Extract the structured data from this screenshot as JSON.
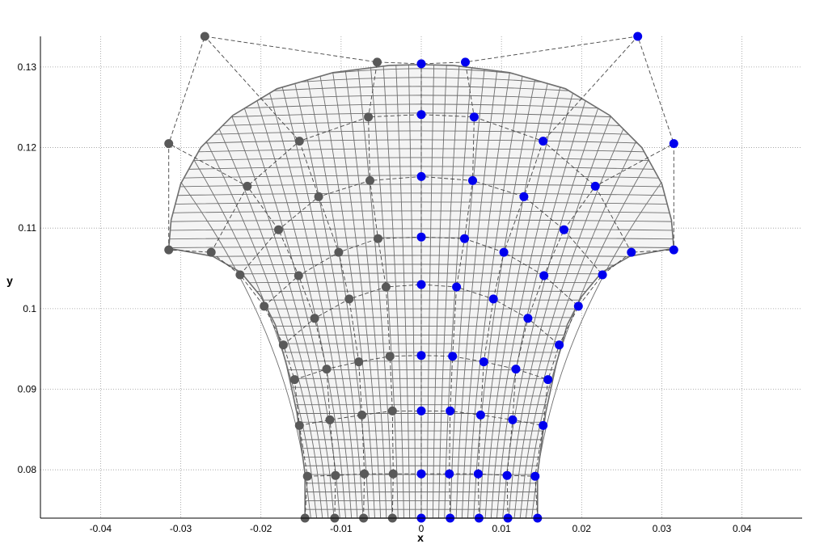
{
  "chart_data": {
    "type": "scatter",
    "xlabel": "x",
    "ylabel": "y",
    "xlim": [
      -0.0475,
      0.0475
    ],
    "ylim": [
      0.074,
      0.1338
    ],
    "grid": true,
    "xticks": [
      -0.04,
      -0.03,
      -0.02,
      -0.01,
      0,
      0.01,
      0.02,
      0.03,
      0.04
    ],
    "xtick_labels": [
      "-0.04",
      "-0.03",
      "-0.02",
      "-0.01",
      "0",
      "0.01",
      "0.02",
      "0.03",
      "0.04"
    ],
    "yticks": [
      0.08,
      0.09,
      0.1,
      0.11,
      0.12,
      0.13
    ],
    "ytick_labels": [
      "0.08",
      "0.09",
      "0.1",
      "0.11",
      "0.12",
      "0.13"
    ],
    "mesh": {
      "color": "#6e6e6e",
      "boundary": {
        "bottom_half_width": 0.0145,
        "bottom_y": 0.074,
        "neck_y": 0.0795,
        "left_edge": [
          [
            -0.0145,
            0.074
          ],
          [
            -0.0145,
            0.0795
          ],
          [
            -0.0155,
            0.087
          ],
          [
            -0.0168,
            0.093
          ],
          [
            -0.0182,
            0.098
          ],
          [
            -0.02,
            0.1015
          ],
          [
            -0.0225,
            0.1045
          ],
          [
            -0.026,
            0.1065
          ],
          [
            -0.0315,
            0.1075
          ]
        ],
        "top_arc": [
          [
            -0.0315,
            0.1075
          ],
          [
            -0.0312,
            0.111
          ],
          [
            -0.03,
            0.1155
          ],
          [
            -0.0275,
            0.12
          ],
          [
            -0.0235,
            0.124
          ],
          [
            -0.018,
            0.1273
          ],
          [
            -0.011,
            0.1293
          ],
          [
            -0.004,
            0.1302
          ],
          [
            0,
            0.1303
          ]
        ]
      }
    },
    "series": [
      {
        "name": "",
        "color": "#595959",
        "points": [
          [
            -0.0145,
            0.074
          ],
          [
            -0.0108,
            0.074
          ],
          [
            -0.0072,
            0.074
          ],
          [
            -0.0036,
            0.074
          ],
          [
            -0.0142,
            0.0792
          ],
          [
            -0.0107,
            0.0793
          ],
          [
            -0.0071,
            0.0795
          ],
          [
            -0.0035,
            0.0795
          ],
          [
            -0.0152,
            0.0855
          ],
          [
            -0.0114,
            0.0862
          ],
          [
            -0.0074,
            0.0868
          ],
          [
            -0.0036,
            0.0873
          ],
          [
            -0.0158,
            0.0912
          ],
          [
            -0.0118,
            0.0925
          ],
          [
            -0.0078,
            0.0934
          ],
          [
            -0.0039,
            0.0941
          ],
          [
            -0.0172,
            0.0955
          ],
          [
            -0.0133,
            0.0988
          ],
          [
            -0.009,
            0.1012
          ],
          [
            -0.0044,
            0.1027
          ],
          [
            -0.0196,
            0.1003
          ],
          [
            -0.0153,
            0.1041
          ],
          [
            -0.0103,
            0.107
          ],
          [
            -0.0054,
            0.1087
          ],
          [
            -0.0226,
            0.1042
          ],
          [
            -0.0178,
            0.1098
          ],
          [
            -0.0128,
            0.1139
          ],
          [
            -0.0064,
            0.1159
          ],
          [
            -0.0262,
            0.107
          ],
          [
            -0.0217,
            0.1152
          ],
          [
            -0.0152,
            0.1208
          ],
          [
            -0.0066,
            0.1238
          ],
          [
            -0.0315,
            0.1073
          ],
          [
            -0.0315,
            0.1205
          ],
          [
            -0.027,
            0.1338
          ],
          [
            -0.0055,
            0.1306
          ]
        ]
      },
      {
        "name": "",
        "color": "#0000ee",
        "points": [
          [
            0,
            0.074
          ],
          [
            0.0036,
            0.074
          ],
          [
            0.0072,
            0.074
          ],
          [
            0.0108,
            0.074
          ],
          [
            0.0145,
            0.074
          ],
          [
            0,
            0.0795
          ],
          [
            0.0035,
            0.0795
          ],
          [
            0.0071,
            0.0795
          ],
          [
            0.0107,
            0.0793
          ],
          [
            0.0142,
            0.0792
          ],
          [
            0,
            0.0873
          ],
          [
            0.0036,
            0.0873
          ],
          [
            0.0074,
            0.0868
          ],
          [
            0.0114,
            0.0862
          ],
          [
            0.0152,
            0.0855
          ],
          [
            0,
            0.0942
          ],
          [
            0.0039,
            0.0941
          ],
          [
            0.0078,
            0.0934
          ],
          [
            0.0118,
            0.0925
          ],
          [
            0.0158,
            0.0912
          ],
          [
            0,
            0.103
          ],
          [
            0.0044,
            0.1027
          ],
          [
            0.009,
            0.1012
          ],
          [
            0.0133,
            0.0988
          ],
          [
            0.0172,
            0.0955
          ],
          [
            0,
            0.1089
          ],
          [
            0.0054,
            0.1087
          ],
          [
            0.0103,
            0.107
          ],
          [
            0.0153,
            0.1041
          ],
          [
            0.0196,
            0.1003
          ],
          [
            0,
            0.1164
          ],
          [
            0.0064,
            0.1159
          ],
          [
            0.0128,
            0.1139
          ],
          [
            0.0178,
            0.1098
          ],
          [
            0.0226,
            0.1042
          ],
          [
            0,
            0.1241
          ],
          [
            0.0066,
            0.1238
          ],
          [
            0.0152,
            0.1208
          ],
          [
            0.0217,
            0.1152
          ],
          [
            0.0262,
            0.107
          ],
          [
            0,
            0.1304
          ],
          [
            0.0055,
            0.1306
          ],
          [
            0.027,
            0.1338
          ],
          [
            0.0315,
            0.1205
          ],
          [
            0.0315,
            0.1073
          ]
        ]
      }
    ]
  }
}
